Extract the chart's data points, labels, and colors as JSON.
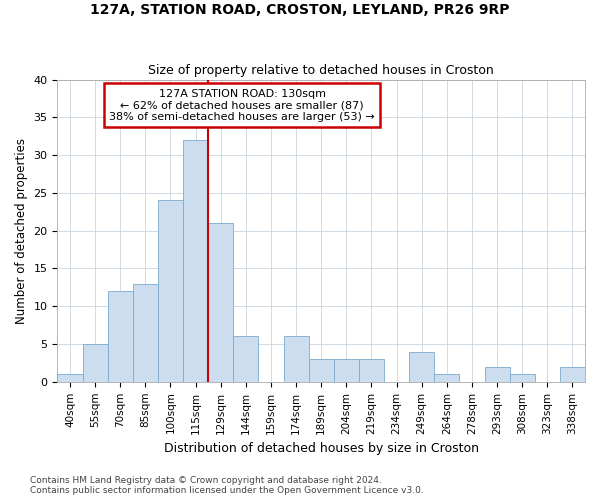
{
  "title_line1": "127A, STATION ROAD, CROSTON, LEYLAND, PR26 9RP",
  "title_line2": "Size of property relative to detached houses in Croston",
  "xlabel": "Distribution of detached houses by size in Croston",
  "ylabel": "Number of detached properties",
  "categories": [
    "40sqm",
    "55sqm",
    "70sqm",
    "85sqm",
    "100sqm",
    "115sqm",
    "129sqm",
    "144sqm",
    "159sqm",
    "174sqm",
    "189sqm",
    "204sqm",
    "219sqm",
    "234sqm",
    "249sqm",
    "264sqm",
    "278sqm",
    "293sqm",
    "308sqm",
    "323sqm",
    "338sqm"
  ],
  "values": [
    1,
    5,
    12,
    13,
    24,
    32,
    21,
    6,
    0,
    6,
    3,
    3,
    3,
    0,
    4,
    1,
    0,
    2,
    1,
    0,
    2
  ],
  "bar_color": "#ccddf0",
  "bar_edge_color": "#7aabcc",
  "grid_color": "#c8d4e0",
  "annotation_text": "127A STATION ROAD: 130sqm\n← 62% of detached houses are smaller (87)\n38% of semi-detached houses are larger (53) →",
  "annotation_box_color": "white",
  "annotation_box_edge_color": "#cc0000",
  "marker_color": "#cc0000",
  "ylim": [
    0,
    40
  ],
  "yticks": [
    0,
    5,
    10,
    15,
    20,
    25,
    30,
    35,
    40
  ],
  "footnote": "Contains HM Land Registry data © Crown copyright and database right 2024.\nContains public sector information licensed under the Open Government Licence v3.0.",
  "bg_color": "#ffffff",
  "plot_bg_color": "#ffffff"
}
